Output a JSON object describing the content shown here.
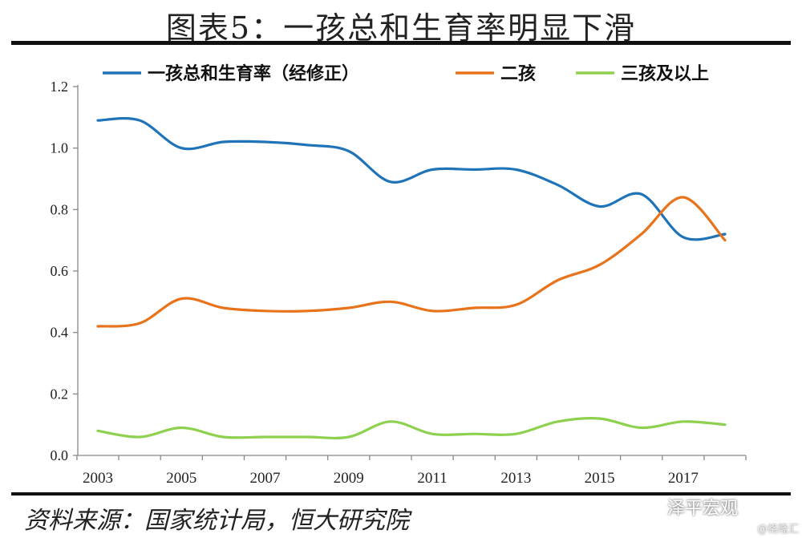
{
  "title": "图表5：一孩总和生育率明显下滑",
  "source": "资料来源：国家统计局，恒大研究院",
  "watermark": {
    "brand": "泽平宏观",
    "credit": "@格隆汇",
    "icon": "wechat-icon"
  },
  "chart_data": {
    "type": "line",
    "x": [
      2003,
      2004,
      2005,
      2006,
      2007,
      2008,
      2009,
      2010,
      2011,
      2012,
      2013,
      2014,
      2015,
      2016,
      2017,
      2018
    ],
    "xtick_labels": [
      "2003",
      "2005",
      "2007",
      "2009",
      "2011",
      "2013",
      "2015",
      "2017"
    ],
    "ytick_labels": [
      "0.0",
      "0.2",
      "0.4",
      "0.6",
      "0.8",
      "1.0",
      "1.2"
    ],
    "ylim": [
      0,
      1.2
    ],
    "grid": false,
    "legend_position": "top",
    "series": [
      {
        "name": "一孩总和生育率（经修正）",
        "color": "#1f73b8",
        "values": [
          1.09,
          1.09,
          1.0,
          1.02,
          1.02,
          1.01,
          0.99,
          0.89,
          0.93,
          0.93,
          0.93,
          0.88,
          0.81,
          0.85,
          0.71,
          0.72
        ]
      },
      {
        "name": "二孩",
        "color": "#e8731a",
        "values": [
          0.42,
          0.43,
          0.51,
          0.48,
          0.47,
          0.47,
          0.48,
          0.5,
          0.47,
          0.48,
          0.49,
          0.57,
          0.62,
          0.72,
          0.84,
          0.7
        ]
      },
      {
        "name": "三孩及以上",
        "color": "#8ed14f",
        "values": [
          0.08,
          0.06,
          0.09,
          0.06,
          0.06,
          0.06,
          0.06,
          0.11,
          0.07,
          0.07,
          0.07,
          0.11,
          0.12,
          0.09,
          0.11,
          0.1
        ]
      }
    ]
  }
}
